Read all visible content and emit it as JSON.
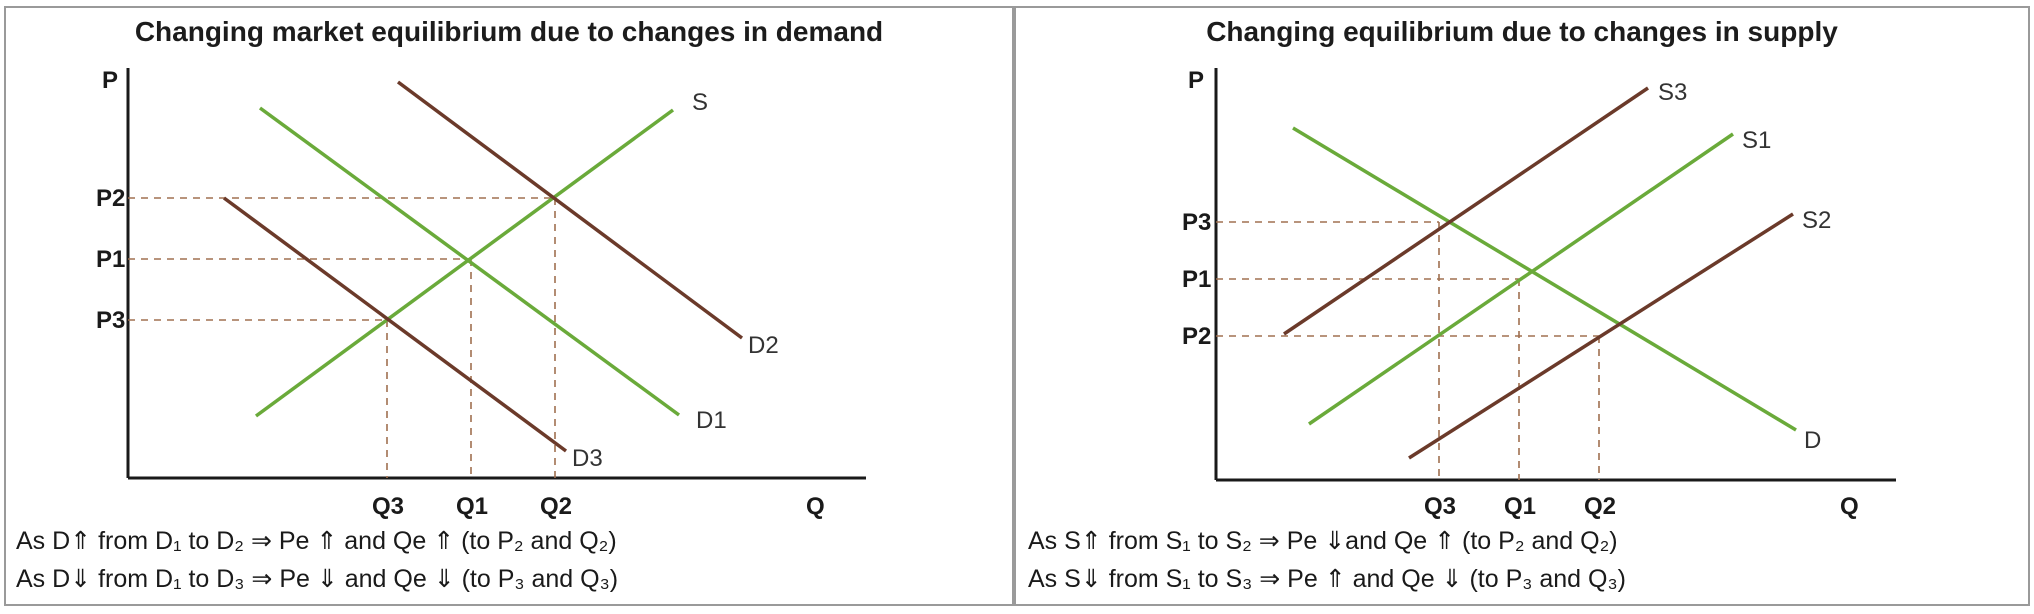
{
  "colors": {
    "demand_base": "#6aaa3a",
    "shifted": "#6b3a2a",
    "supply_base": "#6aaa3a",
    "axis": "#1a1a1a",
    "guide": "#a07050"
  },
  "left": {
    "title": "Changing market equilibrium due to changes in demand",
    "axis_y": "P",
    "axis_x": "Q",
    "price_labels": [
      "P2",
      "P1",
      "P3"
    ],
    "quantity_labels": [
      "Q3",
      "Q1",
      "Q2"
    ],
    "curve_labels": {
      "S": "S",
      "D1": "D1",
      "D2": "D2",
      "D3": "D3"
    },
    "caption_1": "As D⇑ from D₁ to D₂ ⇒ Pe ⇑ and Qe ⇑ (to P₂ and Q₂)",
    "caption_2": "As D⇓ from D₁ to D₃ ⇒ Pe ⇓ and Qe ⇓ (to P₃ and Q₃)"
  },
  "right": {
    "title": "Changing equilibrium due to changes in supply",
    "axis_y": "P",
    "axis_x": "Q",
    "price_labels": [
      "P3",
      "P1",
      "P2"
    ],
    "quantity_labels": [
      "Q3",
      "Q1",
      "Q2"
    ],
    "curve_labels": {
      "S1": "S1",
      "S2": "S2",
      "S3": "S3",
      "D": "D"
    },
    "caption_1": "As S⇑ from S₁ to S₂ ⇒ Pe ⇓and Qe ⇑ (to P₂ and Q₂)",
    "caption_2": "As S⇓ from S₁ to S₃ ⇒ Pe ⇑ and Qe ⇓ (to P₃ and Q₃)"
  }
}
